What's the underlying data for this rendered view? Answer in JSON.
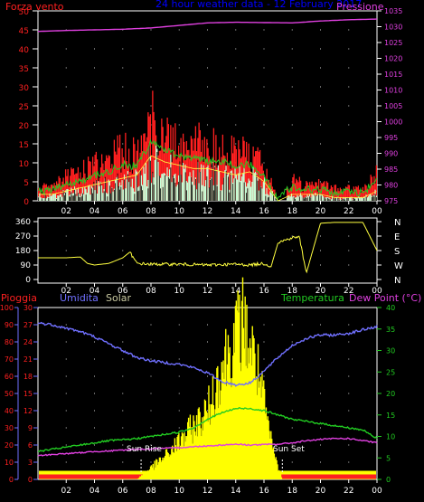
{
  "colors": {
    "wind": "#ff2020",
    "gust_white": "#ffffff",
    "mint": "#c8ffd8",
    "wind_green": "#22cc22",
    "pressure": "#e040e0",
    "direction": "#ffff40",
    "humidity": "#7070ff",
    "temperature": "#22cc22",
    "dewpoint": "#e040e0",
    "solar": "#ffff00",
    "rain": "#ff2020",
    "title": "#0000ff",
    "axis_white": "#ffffff",
    "grid": "#cccccc"
  },
  "chart_data": [
    {
      "type": "line",
      "title": "24 hour weather data - 12 February 2017",
      "ylabel_left": "Forza vento",
      "ylabel_right": "Pressione",
      "y_left_ticks": [
        "0",
        "5",
        "10",
        "15",
        "20",
        "25",
        "30",
        "35",
        "40",
        "45",
        "50"
      ],
      "y_right_ticks": [
        "975",
        "980",
        "985",
        "990",
        "995",
        "1000",
        "1005",
        "1010",
        "1015",
        "1020",
        "1025",
        "1030",
        "1035"
      ],
      "x_ticks": [
        "02",
        "04",
        "06",
        "08",
        "10",
        "12",
        "14",
        "16",
        "18",
        "20",
        "22",
        "00"
      ],
      "ylim_left": [
        0,
        50
      ],
      "ylim_right": [
        975,
        1035
      ],
      "x_range_hours": [
        0,
        24
      ],
      "series": [
        {
          "name": "Pressione",
          "x": [
            0,
            2,
            4,
            6,
            8,
            10,
            12,
            14,
            16,
            18,
            20,
            22,
            24
          ],
          "y": [
            1028.5,
            1028.8,
            1029.0,
            1029.2,
            1029.6,
            1030.4,
            1031.2,
            1031.4,
            1031.3,
            1031.2,
            1031.8,
            1032.2,
            1032.4
          ]
        },
        {
          "name": "Forza vento",
          "x": [
            0,
            1,
            2,
            3,
            4,
            5,
            6,
            7,
            8,
            9,
            10,
            11,
            12,
            13,
            14,
            15,
            16,
            17,
            18,
            19,
            20,
            21,
            22,
            23,
            24
          ],
          "y": [
            3,
            4,
            6,
            7,
            9,
            10,
            13,
            12,
            21,
            18,
            16,
            15,
            14,
            14,
            12,
            13,
            8,
            1,
            5,
            4,
            4,
            3,
            3,
            3,
            7
          ]
        },
        {
          "name": "Media vento",
          "x": [
            0,
            1,
            2,
            3,
            4,
            5,
            6,
            7,
            8,
            9,
            10,
            11,
            12,
            13,
            14,
            15,
            16,
            17,
            18,
            19,
            20,
            21,
            22,
            23,
            24
          ],
          "y": [
            2,
            2,
            3,
            4,
            5,
            6,
            7,
            8,
            14,
            12,
            11,
            10,
            10,
            9,
            8,
            9,
            6,
            0,
            2,
            2,
            2,
            1,
            1,
            1,
            3
          ]
        }
      ]
    },
    {
      "type": "line",
      "y_left_ticks": [
        "0",
        "90",
        "180",
        "270",
        "360"
      ],
      "y_right_ticks": [
        "N",
        "W",
        "S",
        "E",
        "N"
      ],
      "x_ticks": [
        "02",
        "04",
        "06",
        "08",
        "10",
        "12",
        "14",
        "16",
        "18",
        "20",
        "22",
        "00"
      ],
      "ylim": [
        0,
        360
      ],
      "series": [
        {
          "name": "Direzione vento",
          "x": [
            0,
            1.5,
            2,
            3,
            3.5,
            4,
            5,
            5.3,
            6,
            6.5,
            7,
            8,
            10,
            12,
            14,
            15,
            16,
            16.5,
            17,
            18,
            18.5,
            19,
            20,
            21,
            22,
            23,
            24
          ],
          "y": [
            135,
            135,
            135,
            140,
            100,
            90,
            100,
            110,
            135,
            170,
            100,
            95,
            95,
            90,
            95,
            90,
            100,
            80,
            230,
            260,
            265,
            40,
            350,
            355,
            355,
            355,
            180
          ]
        }
      ]
    },
    {
      "type": "area",
      "legend": [
        "Pioggia",
        "Umidita",
        "Solar",
        "Temperatura",
        "Dew Point (°C)"
      ],
      "y_rain_ticks": [
        "0",
        "10",
        "20",
        "30",
        "40",
        "50",
        "60",
        "70",
        "80",
        "90",
        "100"
      ],
      "y_hum_ticks": [
        "0",
        "3",
        "6",
        "9",
        "12",
        "15",
        "18",
        "21",
        "24",
        "27",
        "30"
      ],
      "y_temp_ticks": [
        "0",
        "5",
        "10",
        "15",
        "20",
        "25",
        "30",
        "35",
        "40"
      ],
      "ylim_humidity": [
        0,
        100
      ],
      "ylim_temp": [
        0,
        40
      ],
      "x_ticks": [
        "02",
        "04",
        "06",
        "08",
        "10",
        "12",
        "14",
        "16",
        "18",
        "20",
        "22",
        "00"
      ],
      "annotations": [
        "Sun Rise",
        "Sun Set"
      ],
      "sunrise_hour": 7.3,
      "sunset_hour": 17.3,
      "series": [
        {
          "name": "Umidita",
          "x": [
            0,
            1,
            2,
            3,
            4,
            5,
            6,
            7,
            8,
            9,
            10,
            11,
            12,
            13,
            14,
            15,
            16,
            17,
            18,
            19,
            20,
            21,
            22,
            23,
            24
          ],
          "y": [
            91,
            90,
            88,
            86,
            83,
            79,
            75,
            71,
            69,
            68,
            67,
            65,
            62,
            57,
            55,
            56,
            63,
            71,
            78,
            82,
            84,
            84,
            85,
            87,
            89
          ]
        },
        {
          "name": "Temperatura",
          "x": [
            0,
            1,
            2,
            3,
            4,
            5,
            6,
            7,
            8,
            9,
            10,
            11,
            12,
            13,
            14,
            15,
            16,
            17,
            18,
            19,
            20,
            21,
            22,
            23,
            24
          ],
          "y": [
            6.5,
            7.0,
            7.5,
            8.0,
            8.5,
            9.0,
            9.2,
            9.5,
            10.0,
            10.5,
            11.0,
            12.0,
            14.0,
            15.5,
            16.5,
            16.5,
            16.0,
            15.0,
            14.0,
            13.5,
            13.0,
            12.5,
            12.0,
            11.5,
            9.5
          ]
        },
        {
          "name": "Dew Point",
          "x": [
            0,
            1,
            2,
            3,
            4,
            5,
            6,
            7,
            8,
            9,
            10,
            11,
            12,
            13,
            14,
            15,
            16,
            17,
            18,
            19,
            20,
            21,
            22,
            23,
            24
          ],
          "y": [
            5.5,
            5.8,
            6.0,
            6.2,
            6.5,
            6.6,
            6.8,
            7.0,
            7.1,
            7.2,
            7.4,
            7.6,
            7.8,
            8.0,
            8.2,
            8.0,
            8.1,
            8.2,
            8.5,
            9.0,
            9.3,
            9.5,
            9.5,
            9.0,
            8.5
          ]
        },
        {
          "name": "Solar",
          "x": [
            7,
            8,
            9,
            10,
            11,
            12,
            12.5,
            13,
            13.5,
            14,
            14.5,
            15,
            15.5,
            16,
            16.5,
            17,
            17.3
          ],
          "y": [
            0,
            3,
            6,
            10,
            14,
            18,
            24,
            30,
            34,
            38,
            42,
            36,
            30,
            20,
            10,
            3,
            0
          ]
        },
        {
          "name": "Pioggia",
          "x": [
            0,
            24
          ],
          "y": [
            5,
            5
          ]
        }
      ]
    }
  ]
}
